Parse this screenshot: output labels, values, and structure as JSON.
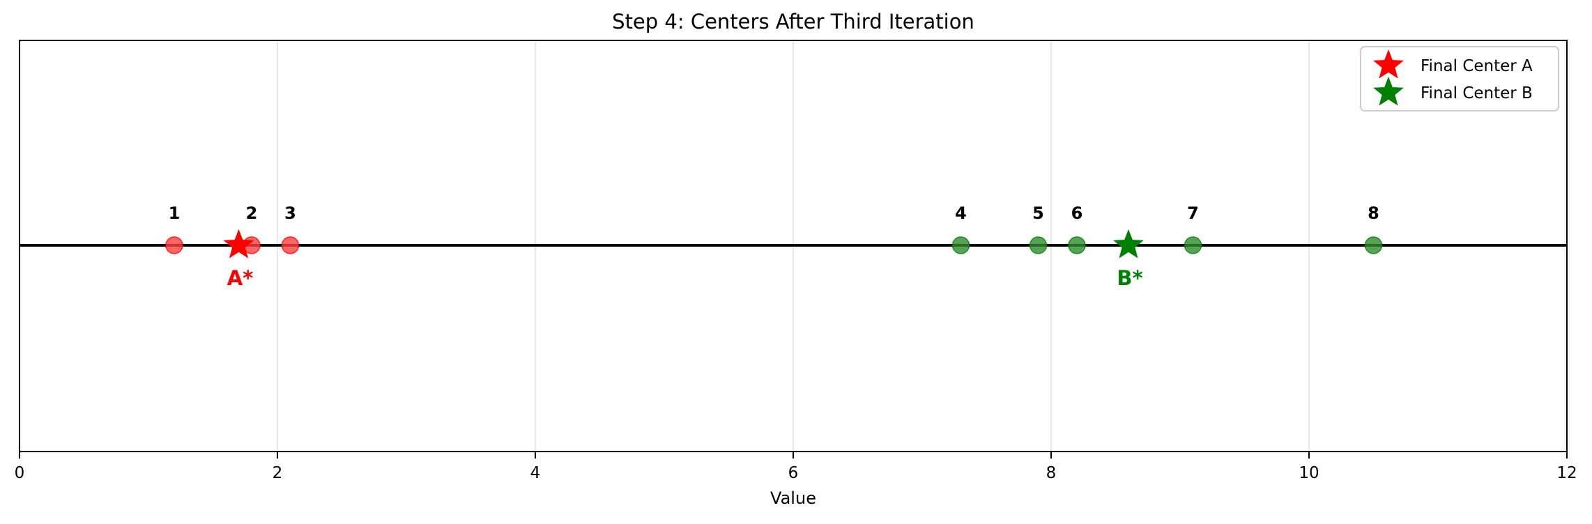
{
  "chart_data": {
    "type": "scatter",
    "title": "Step 4: Centers After Third Iteration",
    "xlabel": "Value",
    "ylabel": "",
    "xlim": [
      0,
      12
    ],
    "x_ticks": [
      0,
      2,
      4,
      6,
      8,
      10,
      12
    ],
    "grid": "vertical",
    "legend_position": "top-right",
    "baseline": "horizontal line at center",
    "points": [
      {
        "label": "1",
        "x": 1.2,
        "cluster": "A"
      },
      {
        "label": "2",
        "x": 1.8,
        "cluster": "A"
      },
      {
        "label": "3",
        "x": 2.1,
        "cluster": "A"
      },
      {
        "label": "4",
        "x": 7.3,
        "cluster": "B"
      },
      {
        "label": "5",
        "x": 7.9,
        "cluster": "B"
      },
      {
        "label": "6",
        "x": 8.2,
        "cluster": "B"
      },
      {
        "label": "7",
        "x": 9.1,
        "cluster": "B"
      },
      {
        "label": "8",
        "x": 10.5,
        "cluster": "B"
      }
    ],
    "centers": [
      {
        "label": "A*",
        "x": 1.7,
        "cluster": "A",
        "legend": "Final Center A"
      },
      {
        "label": "B*",
        "x": 8.6,
        "cluster": "B",
        "legend": "Final Center B"
      }
    ],
    "colors": {
      "A": "#ff0000",
      "B": "#008000",
      "point_fill_A": "#ff4040",
      "point_fill_B": "#2e8b2e",
      "baseline": "#000000",
      "grid": "#e0e0e0"
    }
  }
}
